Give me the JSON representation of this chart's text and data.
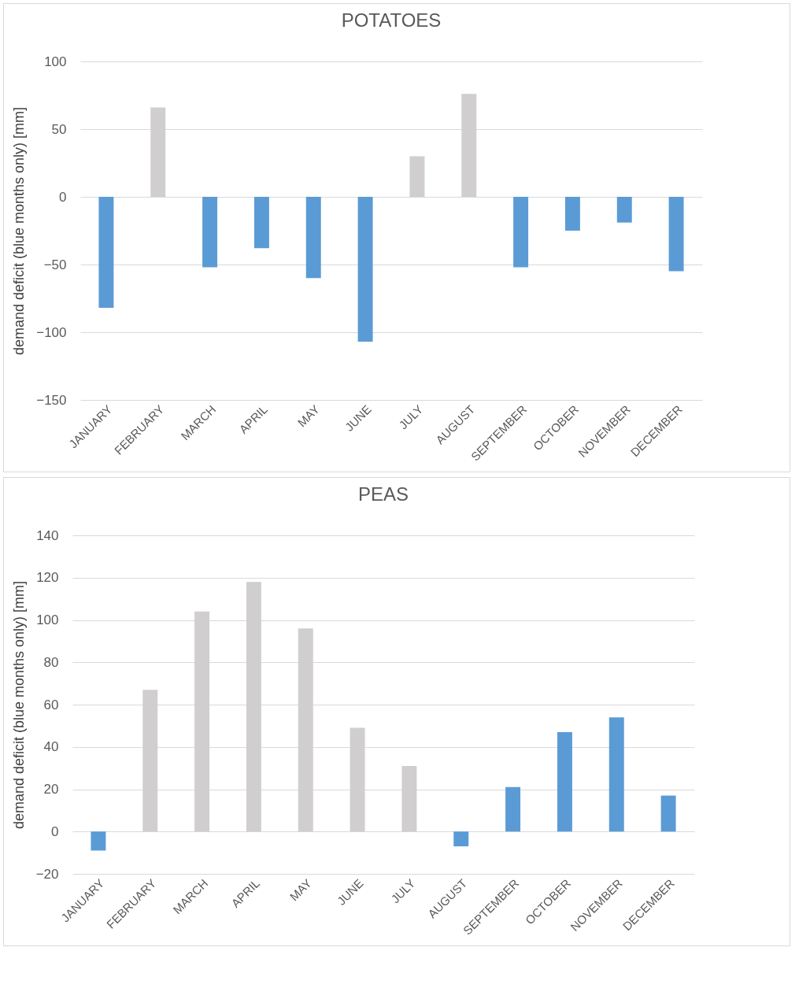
{
  "chart_data": [
    {
      "type": "bar",
      "title": "POTATOES",
      "ylabel": "demand deficit (blue months only) [mm]",
      "categories": [
        "JANUARY",
        "FEBRUARY",
        "MARCH",
        "APRIL",
        "MAY",
        "JUNE",
        "JULY",
        "AUGUST",
        "SEPTEMBER",
        "OCTOBER",
        "NOVEMBER",
        "DECEMBER"
      ],
      "values": [
        -82,
        66,
        -52,
        -38,
        -60,
        -107,
        30,
        76,
        -52,
        -25,
        -19,
        -55
      ],
      "colors": [
        "#5b9bd5",
        "#d0cece",
        "#5b9bd5",
        "#5b9bd5",
        "#5b9bd5",
        "#5b9bd5",
        "#d0cece",
        "#d0cece",
        "#5b9bd5",
        "#5b9bd5",
        "#5b9bd5",
        "#5b9bd5"
      ],
      "ylim": [
        -150,
        100
      ],
      "yticks": [
        -150,
        -100,
        -50,
        0,
        50,
        100
      ],
      "grid": "y"
    },
    {
      "type": "bar",
      "title": "PEAS",
      "ylabel": "demand deficit (blue months only) [mm]",
      "categories": [
        "JANUARY",
        "FEBRUARY",
        "MARCH",
        "APRIL",
        "MAY",
        "JUNE",
        "JULY",
        "AUGUST",
        "SEPTEMBER",
        "OCTOBER",
        "NOVEMBER",
        "DECEMBER"
      ],
      "values": [
        -9,
        67,
        104,
        118,
        96,
        49,
        31,
        -7,
        21,
        47,
        54,
        17
      ],
      "colors": [
        "#5b9bd5",
        "#d0cece",
        "#d0cece",
        "#d0cece",
        "#d0cece",
        "#d0cece",
        "#d0cece",
        "#5b9bd5",
        "#5b9bd5",
        "#5b9bd5",
        "#5b9bd5",
        "#5b9bd5"
      ],
      "ylim": [
        -20,
        140
      ],
      "yticks": [
        -20,
        0,
        20,
        40,
        60,
        80,
        100,
        120,
        140
      ],
      "grid": "y"
    }
  ]
}
